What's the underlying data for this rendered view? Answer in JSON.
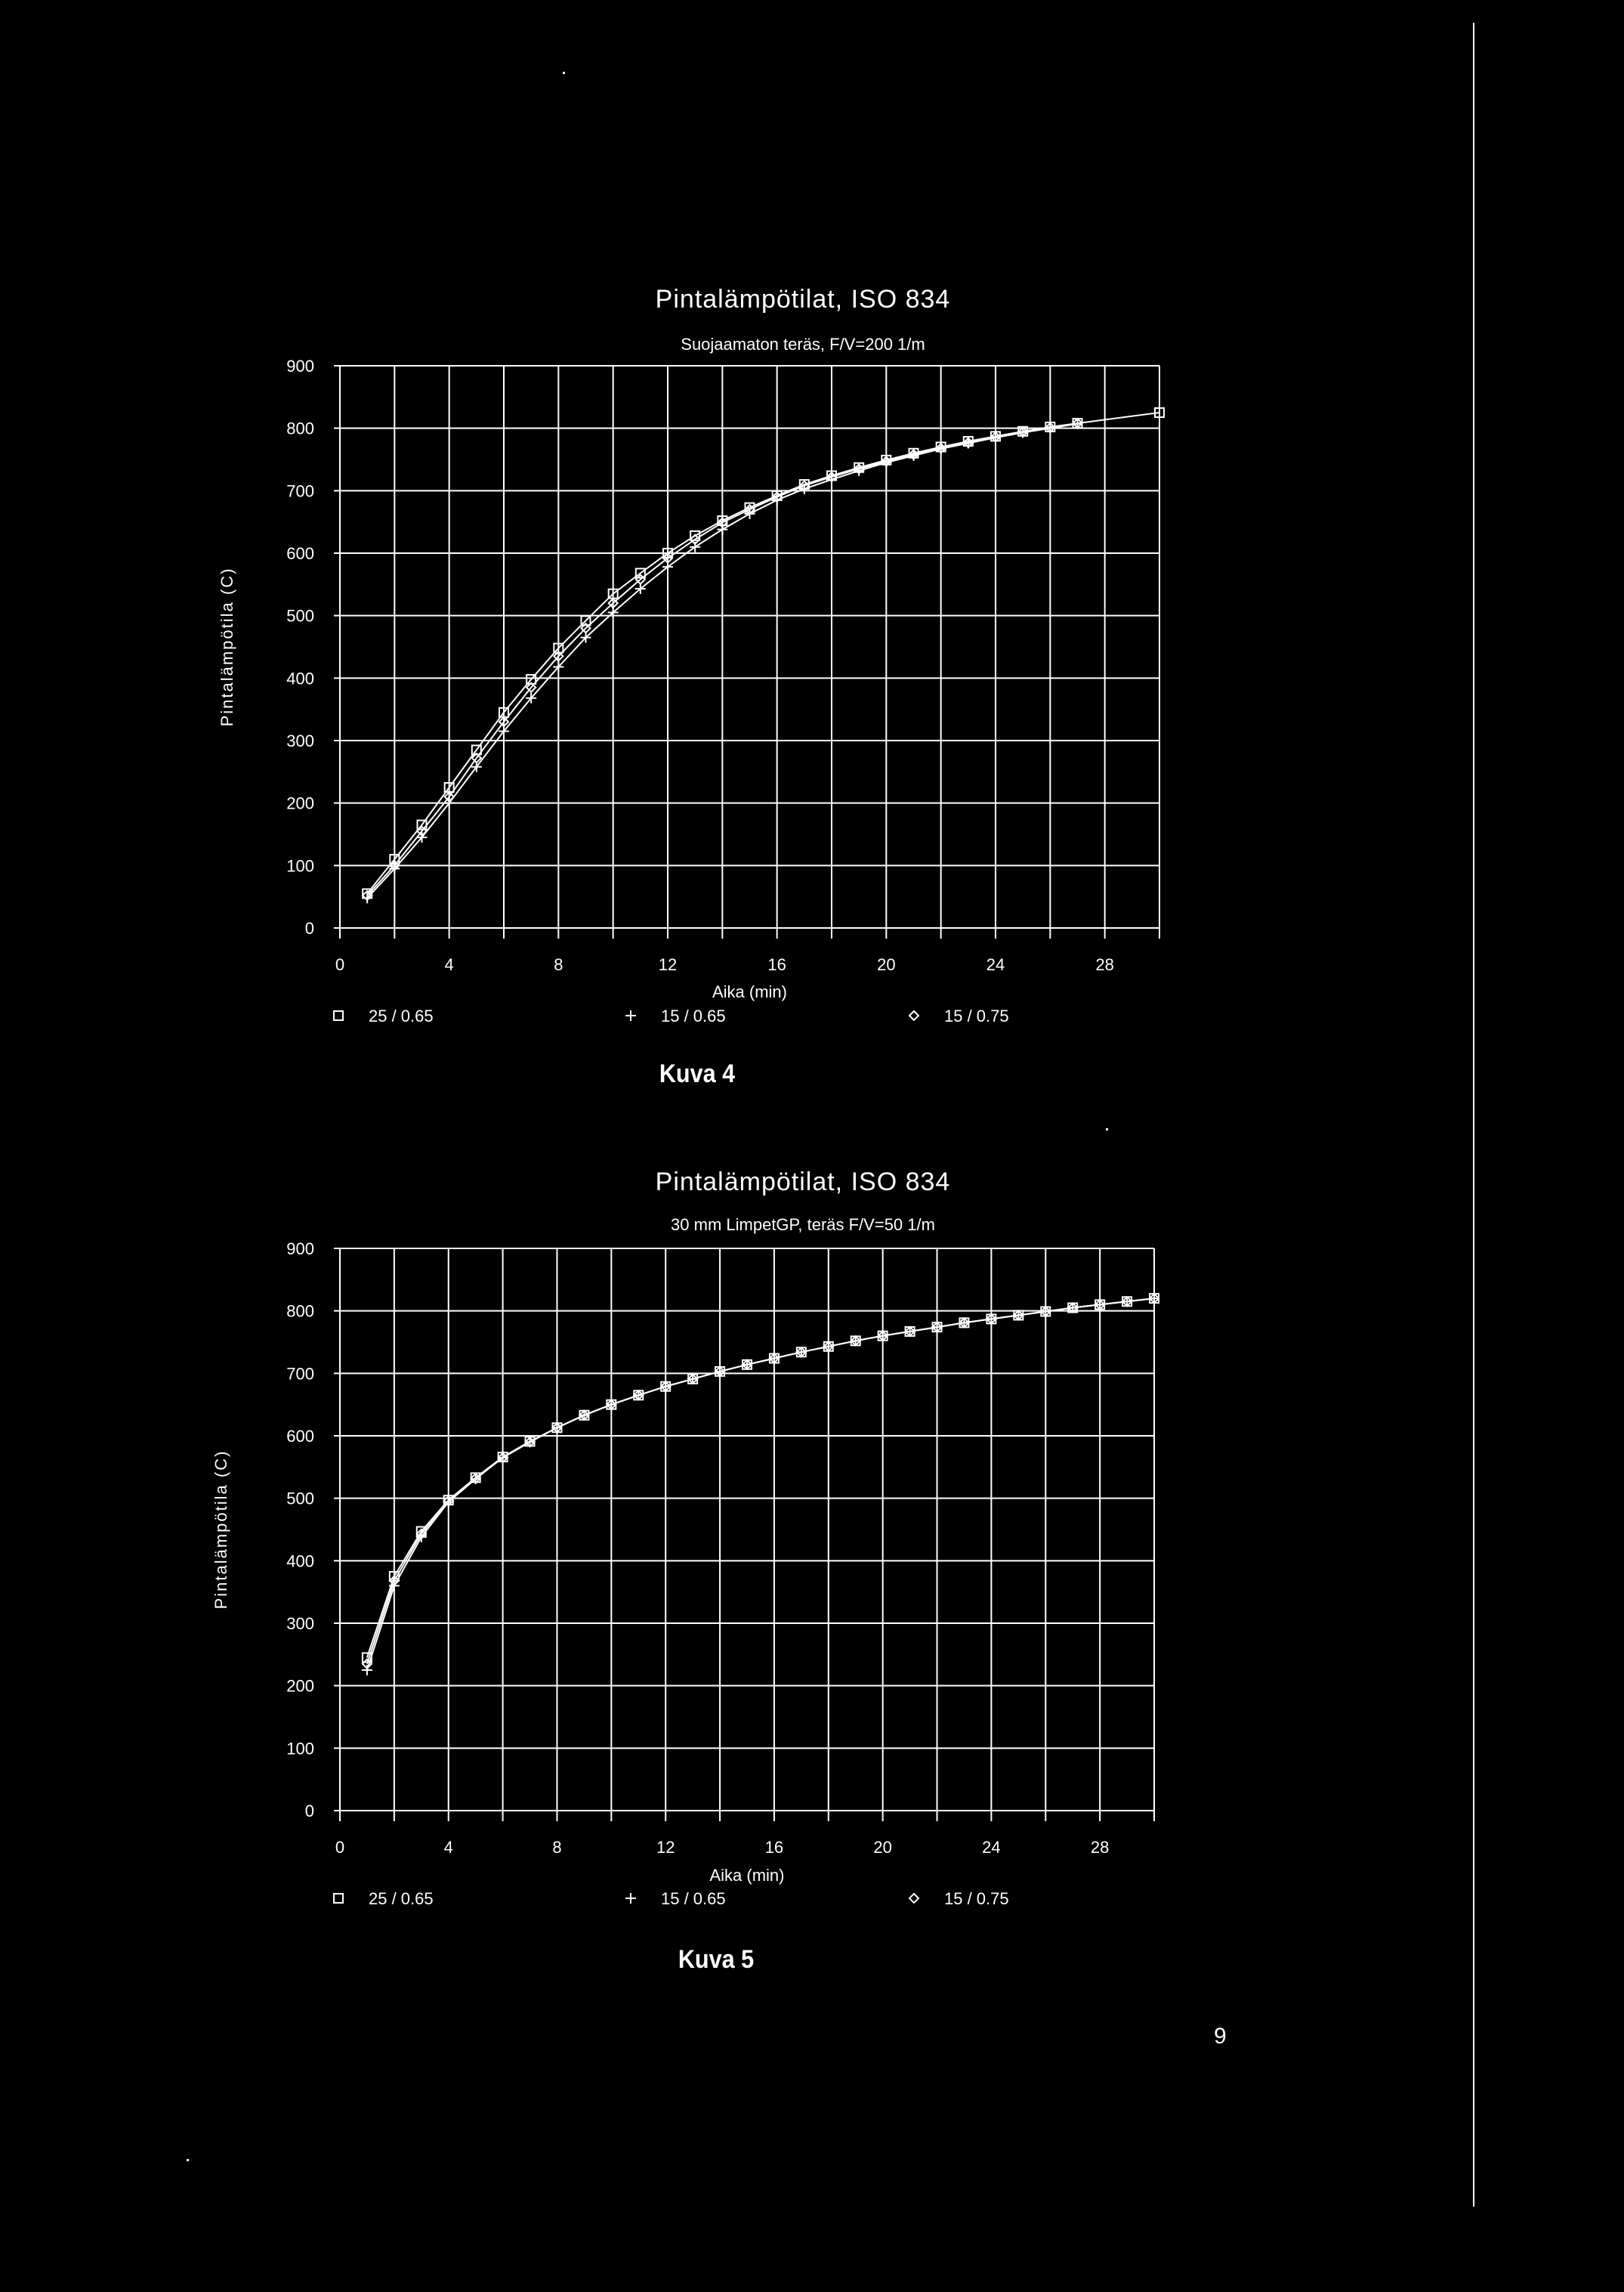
{
  "page": {
    "number": "9",
    "background": "#000000",
    "foreground": "#ffffff"
  },
  "figures": [
    {
      "caption": "Kuva 4",
      "xlabel": "Aika (min)",
      "ylabel": "Pintalämpötila (C)",
      "legend": [
        {
          "marker": "square",
          "symbol": "□",
          "label": "25 / 0.65"
        },
        {
          "marker": "plus",
          "symbol": "+",
          "label": "15 / 0.65"
        },
        {
          "marker": "diamond",
          "symbol": "◇",
          "label": "15 / 0.75"
        }
      ]
    },
    {
      "caption": "Kuva 5",
      "xlabel": "Aika (min)",
      "ylabel": "Pintalämpötila (C)",
      "legend": [
        {
          "marker": "square",
          "symbol": "□",
          "label": "25 / 0.65"
        },
        {
          "marker": "plus",
          "symbol": "+",
          "label": "15 / 0.65"
        },
        {
          "marker": "diamond",
          "symbol": "◇",
          "label": "15 / 0.75"
        }
      ]
    }
  ],
  "chart_data": [
    {
      "type": "line",
      "title": "Pintalämpötilat, ISO 834",
      "subtitle": "Suojaamaton teräs, F/V=200 1/m",
      "xlabel": "Aika (min)",
      "ylabel": "Pintalämpötila (C)",
      "xlim": [
        0,
        30
      ],
      "ylim": [
        0,
        900
      ],
      "xticks": [
        0,
        4,
        8,
        12,
        16,
        20,
        24,
        28
      ],
      "yticks": [
        0,
        100,
        200,
        300,
        400,
        500,
        600,
        700,
        800,
        900
      ],
      "grid": true,
      "legend_position": "bottom",
      "series": [
        {
          "name": "25 / 0.65",
          "marker": "square",
          "x": [
            1,
            2,
            3,
            4,
            5,
            6,
            7,
            8,
            9,
            10,
            11,
            12,
            13,
            14,
            15,
            16,
            17,
            18,
            19,
            20,
            21,
            22,
            23,
            24,
            25,
            26,
            27,
            30
          ],
          "y": [
            55,
            110,
            165,
            225,
            285,
            345,
            398,
            448,
            492,
            535,
            568,
            600,
            628,
            652,
            673,
            692,
            710,
            724,
            737,
            749,
            760,
            770,
            779,
            787,
            795,
            802,
            808,
            825
          ]
        },
        {
          "name": "15 / 0.65",
          "marker": "plus",
          "x": [
            1,
            2,
            3,
            4,
            5,
            6,
            7,
            8,
            9,
            10,
            11,
            12,
            13,
            14,
            15,
            16,
            17,
            18,
            19,
            20,
            21,
            22,
            23,
            24,
            25,
            26,
            27
          ],
          "y": [
            48,
            95,
            145,
            200,
            258,
            315,
            368,
            418,
            465,
            505,
            543,
            578,
            610,
            638,
            663,
            685,
            703,
            718,
            732,
            745,
            756,
            767,
            776,
            785,
            793,
            800,
            807
          ]
        },
        {
          "name": "15 / 0.75",
          "marker": "diamond",
          "x": [
            1,
            2,
            3,
            4,
            5,
            6,
            7,
            8,
            9,
            10,
            11,
            12,
            13,
            14,
            15,
            16,
            17,
            18,
            19,
            20,
            21,
            22,
            23,
            24,
            25,
            26,
            27
          ],
          "y": [
            52,
            100,
            155,
            210,
            272,
            330,
            385,
            435,
            480,
            520,
            558,
            592,
            622,
            649,
            670,
            690,
            708,
            722,
            735,
            747,
            758,
            768,
            777,
            786,
            794,
            801,
            808
          ]
        }
      ]
    },
    {
      "type": "line",
      "title": "Pintalämpötilat, ISO 834",
      "subtitle": "30 mm LimpetGP, teräs F/V=50 1/m",
      "xlabel": "Aika (min)",
      "ylabel": "Pintalämpötila (C)",
      "xlim": [
        0,
        30
      ],
      "ylim": [
        0,
        900
      ],
      "xticks": [
        0,
        4,
        8,
        12,
        16,
        20,
        24,
        28
      ],
      "yticks": [
        0,
        100,
        200,
        300,
        400,
        500,
        600,
        700,
        800,
        900
      ],
      "grid": true,
      "legend_position": "bottom",
      "series": [
        {
          "name": "25 / 0.65",
          "marker": "square",
          "x": [
            1,
            2,
            3,
            4,
            5,
            6,
            7,
            8,
            9,
            10,
            11,
            12,
            13,
            14,
            15,
            16,
            17,
            18,
            19,
            20,
            21,
            22,
            23,
            24,
            25,
            26,
            27,
            28,
            29,
            30
          ],
          "y": [
            245,
            375,
            447,
            497,
            533,
            566,
            591,
            613,
            633,
            650,
            665,
            679,
            691,
            703,
            714,
            724,
            734,
            743,
            752,
            760,
            767,
            774,
            781,
            787,
            793,
            799,
            805,
            810,
            815,
            820
          ]
        },
        {
          "name": "15 / 0.65",
          "marker": "plus",
          "x": [
            1,
            2,
            3,
            4,
            5,
            6,
            7,
            8,
            9,
            10,
            11,
            12,
            13,
            14,
            15,
            16,
            17,
            18,
            19,
            20,
            21,
            22,
            23,
            24,
            25,
            26,
            27,
            28,
            29,
            30
          ],
          "y": [
            225,
            360,
            438,
            494,
            531,
            565,
            590,
            613,
            633,
            650,
            665,
            679,
            691,
            703,
            714,
            724,
            734,
            743,
            752,
            760,
            767,
            774,
            781,
            787,
            793,
            799,
            805,
            810,
            815,
            820
          ]
        },
        {
          "name": "15 / 0.75",
          "marker": "diamond",
          "x": [
            1,
            2,
            3,
            4,
            5,
            6,
            7,
            8,
            9,
            10,
            11,
            12,
            13,
            14,
            15,
            16,
            17,
            18,
            19,
            20,
            21,
            22,
            23,
            24,
            25,
            26,
            27,
            28,
            29,
            30
          ],
          "y": [
            235,
            368,
            443,
            496,
            532,
            565,
            590,
            613,
            633,
            650,
            665,
            679,
            691,
            703,
            714,
            724,
            734,
            743,
            752,
            760,
            767,
            774,
            781,
            787,
            793,
            799,
            805,
            810,
            815,
            820
          ]
        }
      ]
    }
  ]
}
